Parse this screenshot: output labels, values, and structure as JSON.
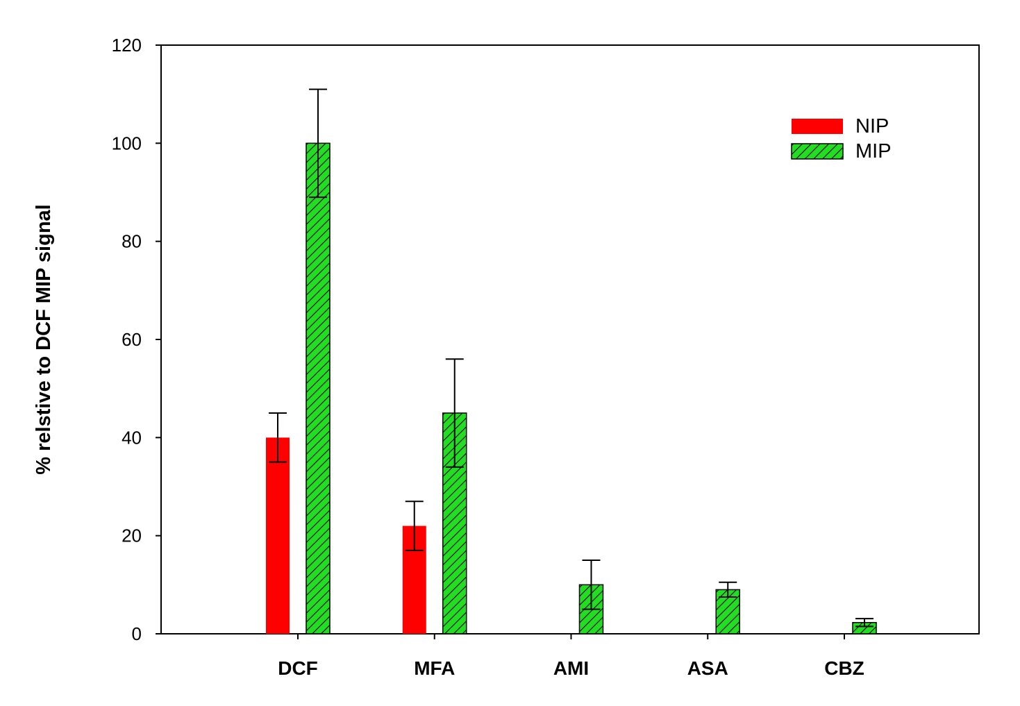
{
  "chart_data": {
    "type": "bar",
    "xlabel": "",
    "ylabel": "% relstive to DCF MIP signal",
    "ylim": [
      0,
      120
    ],
    "yticks": [
      "0",
      "20",
      "40",
      "60",
      "80",
      "100",
      "120"
    ],
    "categories": [
      "DCF",
      "MFA",
      "AMI",
      "ASA",
      "CBZ"
    ],
    "series": [
      {
        "name": "NIP",
        "color": "#ff0000",
        "pattern": "solid",
        "values": [
          40,
          22,
          null,
          null,
          null
        ],
        "errors": [
          5,
          5,
          null,
          null,
          null
        ]
      },
      {
        "name": "MIP",
        "color": "#22dd22",
        "pattern": "diagonal-hatch",
        "values": [
          100,
          45,
          10,
          9,
          2.3
        ],
        "errors": [
          11,
          11,
          5,
          1.5,
          0.8
        ]
      }
    ],
    "legend": {
      "position": "top-right"
    },
    "grid": false
  }
}
